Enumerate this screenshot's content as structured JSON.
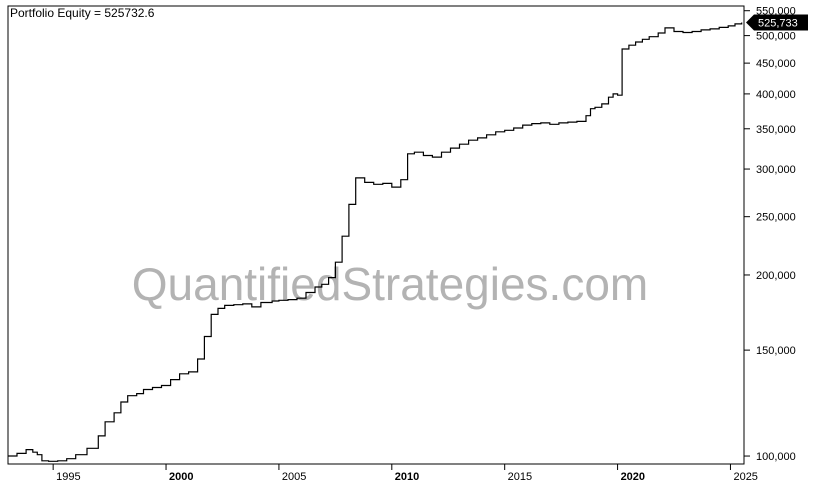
{
  "header": {
    "legend_label": "Portfolio Equity = 525732.6"
  },
  "watermark": "QuantifiedStrategies.com",
  "last_value_badge": "525,733",
  "colors": {
    "line": "#000000",
    "badge_bg": "#000000",
    "badge_text": "#ffffff",
    "watermark": "#b3b3b3",
    "frame": "#000000"
  },
  "chart_data": {
    "type": "line",
    "y_scale": "log",
    "xlim": [
      1993.0,
      2025.6
    ],
    "ylim": [
      97000,
      560000
    ],
    "grid": false,
    "legend": "top-left",
    "x_ticks": [
      {
        "value": 1995,
        "label": "1995",
        "bold": false
      },
      {
        "value": 2000,
        "label": "2000",
        "bold": true
      },
      {
        "value": 2005,
        "label": "2005",
        "bold": false
      },
      {
        "value": 2010,
        "label": "2010",
        "bold": true
      },
      {
        "value": 2015,
        "label": "2015",
        "bold": false
      },
      {
        "value": 2020,
        "label": "2020",
        "bold": true
      },
      {
        "value": 2025,
        "label": "2025",
        "bold": false
      }
    ],
    "y_ticks": [
      {
        "value": 100000,
        "label": "100,000"
      },
      {
        "value": 150000,
        "label": "150,000"
      },
      {
        "value": 200000,
        "label": "200,000"
      },
      {
        "value": 250000,
        "label": "250,000"
      },
      {
        "value": 300000,
        "label": "300,000"
      },
      {
        "value": 350000,
        "label": "350,000"
      },
      {
        "value": 400000,
        "label": "400,000"
      },
      {
        "value": 450000,
        "label": "450,000"
      },
      {
        "value": 500000,
        "label": "500,000"
      },
      {
        "value": 550000,
        "label": "550,000"
      }
    ],
    "series": [
      {
        "x": [
          1993.0,
          1993.4,
          1993.8,
          1994.1,
          1994.3,
          1994.5,
          1994.8,
          1995.2,
          1995.6,
          1996.0,
          1996.5,
          1997.0,
          1997.3,
          1997.7,
          1998.0,
          1998.3,
          1998.7,
          1999.0,
          1999.4,
          1999.8,
          2000.2,
          2000.6,
          2001.0,
          2001.4,
          2001.7,
          2002.0,
          2002.3,
          2002.6,
          2003.0,
          2003.4,
          2003.8,
          2004.2,
          2004.7,
          2005.0,
          2005.4,
          2005.8,
          2006.2,
          2006.6,
          2006.9,
          2007.2,
          2007.5,
          2007.8,
          2008.1,
          2008.4,
          2008.8,
          2009.2,
          2009.6,
          2010.0,
          2010.4,
          2010.7,
          2011.0,
          2011.4,
          2011.8,
          2012.2,
          2012.6,
          2013.0,
          2013.4,
          2013.8,
          2014.2,
          2014.6,
          2015.0,
          2015.4,
          2015.8,
          2016.2,
          2016.6,
          2017.0,
          2017.4,
          2017.8,
          2018.2,
          2018.6,
          2018.8,
          2019.0,
          2019.3,
          2019.6,
          2019.8,
          2020.0,
          2020.2,
          2020.5,
          2020.8,
          2021.1,
          2021.4,
          2021.8,
          2022.1,
          2022.5,
          2022.9,
          2023.3,
          2023.7,
          2024.1,
          2024.5,
          2024.9,
          2025.2,
          2025.5
        ],
        "y": [
          100000,
          101000,
          102500,
          101500,
          100500,
          98200,
          98000,
          98200,
          99000,
          100500,
          103000,
          108000,
          114000,
          118000,
          123000,
          126000,
          127000,
          129000,
          130000,
          131000,
          134000,
          137000,
          138000,
          145000,
          158000,
          172000,
          176000,
          178000,
          178500,
          179000,
          177000,
          180000,
          181000,
          181500,
          182000,
          183000,
          187000,
          191000,
          193000,
          198000,
          210000,
          232000,
          262000,
          290000,
          285000,
          283000,
          284000,
          280000,
          288000,
          318000,
          320000,
          316000,
          314000,
          320000,
          325000,
          330000,
          335000,
          338000,
          342000,
          346000,
          348000,
          351000,
          355000,
          357000,
          358000,
          356000,
          358000,
          359000,
          360000,
          368000,
          378000,
          380000,
          385000,
          395000,
          400000,
          398000,
          475000,
          482000,
          488000,
          493000,
          498000,
          505000,
          515000,
          508000,
          506000,
          508000,
          511000,
          513000,
          516000,
          519000,
          523000,
          525733
        ]
      }
    ]
  }
}
